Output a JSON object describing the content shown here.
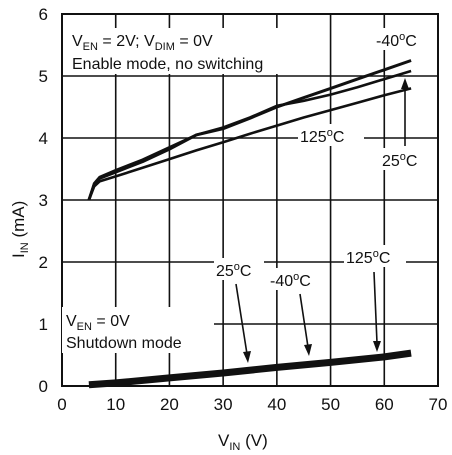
{
  "chart_data": {
    "type": "line",
    "xlabel_main": "V",
    "xlabel_sub": "IN",
    "xlabel_unit": " (V)",
    "ylabel_main": "I",
    "ylabel_sub": "IN",
    "ylabel_unit": " (mA)",
    "xlim": [
      0,
      70
    ],
    "ylim": [
      0,
      6
    ],
    "xticks": [
      0,
      10,
      20,
      30,
      40,
      50,
      60,
      70
    ],
    "yticks": [
      0,
      1,
      2,
      3,
      4,
      5,
      6
    ],
    "grid": true,
    "series": [
      {
        "name": "-40°C, enable mode",
        "x": [
          5,
          6,
          7,
          10,
          15,
          20,
          25,
          30,
          35,
          40,
          45,
          50,
          55,
          60,
          65
        ],
        "y": [
          3.0,
          3.25,
          3.35,
          3.45,
          3.62,
          3.82,
          4.05,
          4.15,
          4.32,
          4.5,
          4.65,
          4.8,
          4.95,
          5.1,
          5.25
        ]
      },
      {
        "name": "25°C, enable mode",
        "x": [
          5,
          6,
          7,
          10,
          15,
          20,
          25,
          30,
          35,
          40,
          45,
          50,
          55,
          60,
          65
        ],
        "y": [
          3.0,
          3.27,
          3.37,
          3.48,
          3.65,
          3.85,
          4.05,
          4.17,
          4.33,
          4.52,
          4.6,
          4.7,
          4.82,
          4.95,
          5.08
        ]
      },
      {
        "name": "125°C, enable mode",
        "x": [
          5,
          6,
          7,
          10,
          15,
          20,
          25,
          30,
          35,
          40,
          45,
          50,
          55,
          60,
          65
        ],
        "y": [
          3.0,
          3.22,
          3.3,
          3.38,
          3.52,
          3.66,
          3.8,
          3.93,
          4.07,
          4.2,
          4.33,
          4.45,
          4.57,
          4.69,
          4.8
        ]
      },
      {
        "name": "shutdown mode (all temperatures)",
        "x": [
          5,
          10,
          20,
          30,
          40,
          50,
          60,
          65
        ],
        "y": [
          0.02,
          0.05,
          0.13,
          0.21,
          0.3,
          0.38,
          0.47,
          0.53
        ]
      }
    ],
    "annotations": {
      "enable_l1a": "V",
      "enable_l1b": "EN",
      "enable_l1c": " = 2V; V",
      "enable_l1d": "DIM",
      "enable_l1e": " = 0V",
      "enable_l2": "Enable mode, no switching",
      "shutdown_l1a": "V",
      "shutdown_l1b": "EN",
      "shutdown_l1c": " = 0V",
      "shutdown_l2": "Shutdown mode",
      "t_m40_top_a": "-40",
      "t_m40_top_b": "o",
      "t_m40_top_c": "C",
      "t_125_mid_a": "125",
      "t_125_mid_b": "o",
      "t_125_mid_c": "C",
      "t_25_mid_a": "25",
      "t_25_mid_b": "o",
      "t_25_mid_c": "C",
      "t_25_low_a": "25",
      "t_25_low_b": "o",
      "t_25_low_c": "C",
      "t_m40_low_a": "-40",
      "t_m40_low_b": "o",
      "t_m40_low_c": "C",
      "t_125_low_a": "125",
      "t_125_low_b": "o",
      "t_125_low_c": "C"
    }
  }
}
